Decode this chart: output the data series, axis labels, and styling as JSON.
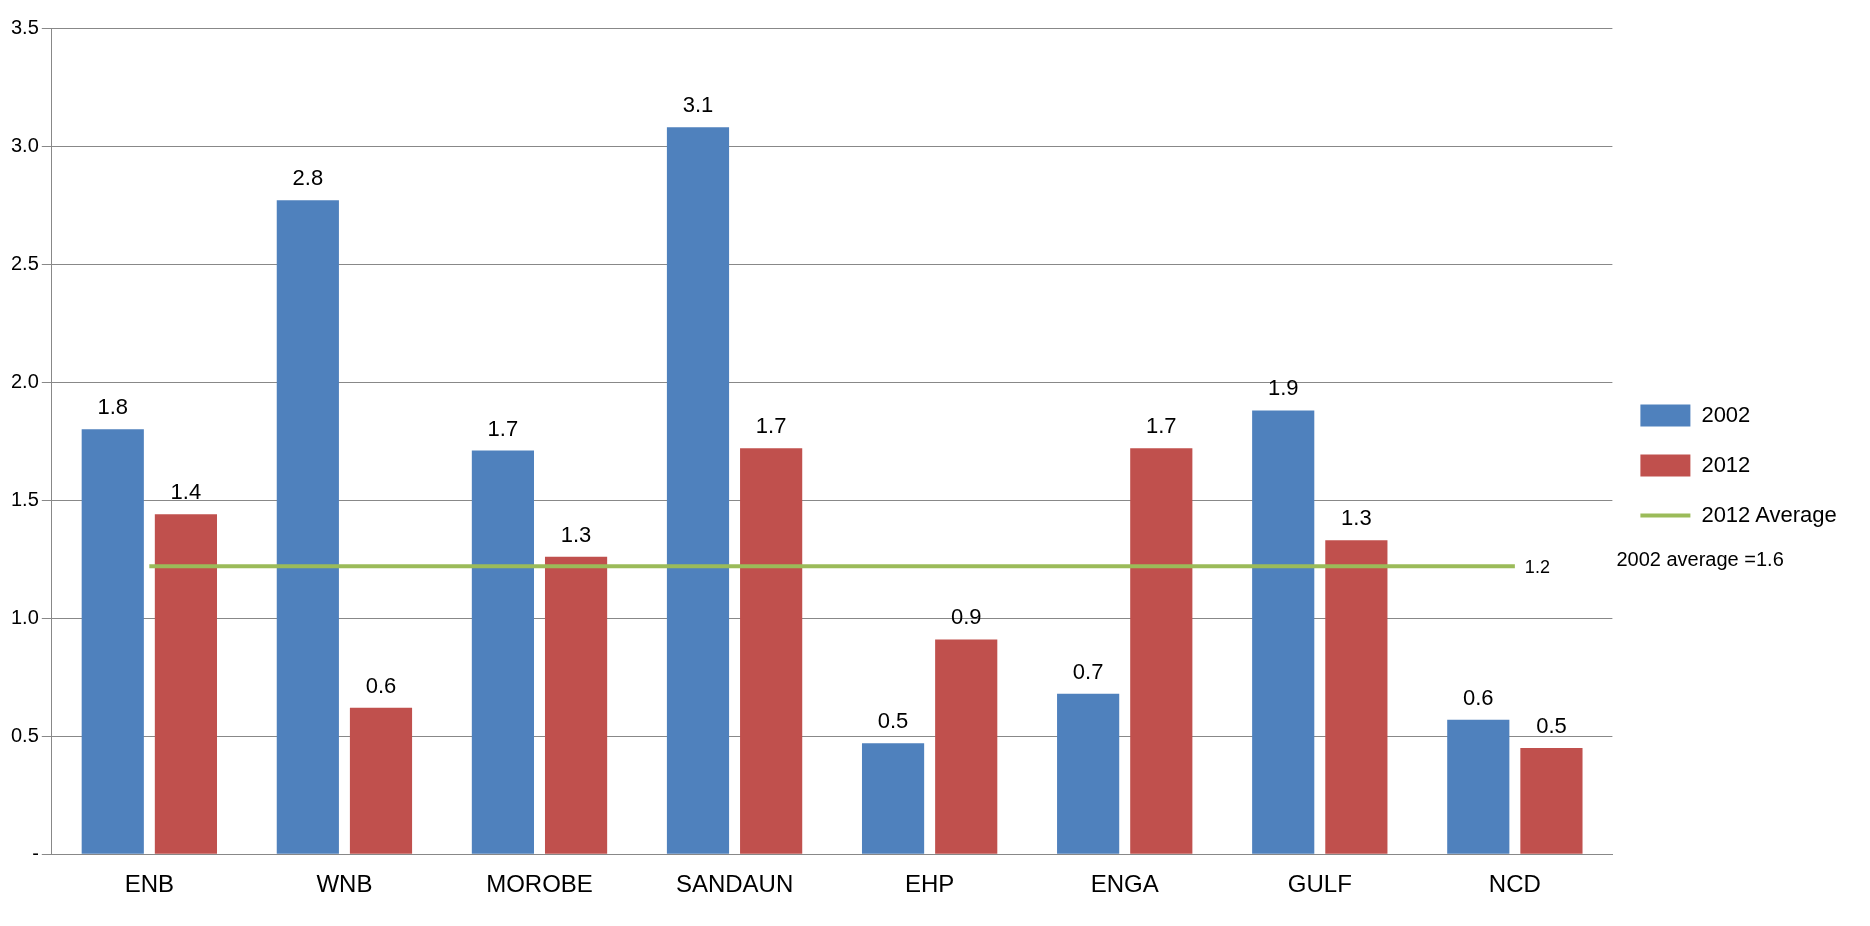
{
  "chart_data": {
    "type": "bar",
    "categories": [
      "ENB",
      "WNB",
      "MOROBE",
      "SANDAUN",
      "EHP",
      "ENGA",
      "GULF",
      "NCD"
    ],
    "series": [
      {
        "name": "2002",
        "color": "#4f81bd",
        "values": [
          1.8,
          2.77,
          1.71,
          3.08,
          0.47,
          0.68,
          1.88,
          0.57
        ],
        "value_labels": [
          "1.8",
          "2.8",
          "1.7",
          "3.1",
          "0.5",
          "0.7",
          "1.9",
          "0.6"
        ]
      },
      {
        "name": "2012",
        "color": "#c0504d",
        "values": [
          1.44,
          0.62,
          1.26,
          1.72,
          0.91,
          1.72,
          1.33,
          0.45
        ],
        "value_labels": [
          "1.4",
          "0.6",
          "1.3",
          "1.7",
          "0.9",
          "1.7",
          "1.3",
          "0.5"
        ]
      },
      {
        "name": "2012 Average",
        "type": "line",
        "color": "#9bbb59",
        "values": [
          1.22,
          1.22,
          1.22,
          1.22,
          1.22,
          1.22,
          1.22,
          1.22
        ],
        "value_labels": [
          null,
          null,
          null,
          null,
          null,
          null,
          null,
          "1.2"
        ]
      }
    ],
    "ylim": [
      0,
      3.5
    ],
    "yticks": [
      {
        "value": 0,
        "label": "-"
      },
      0.5,
      {
        "value": 1,
        "label": "1.0"
      },
      1.5,
      {
        "value": 2,
        "label": "2.0"
      },
      2.5,
      {
        "value": 3,
        "label": "3.0"
      },
      3.5
    ],
    "grid": "y",
    "legend": "right",
    "marker": "none",
    "line_style": "solid",
    "annotations": [
      "2002 average =1.6"
    ]
  }
}
